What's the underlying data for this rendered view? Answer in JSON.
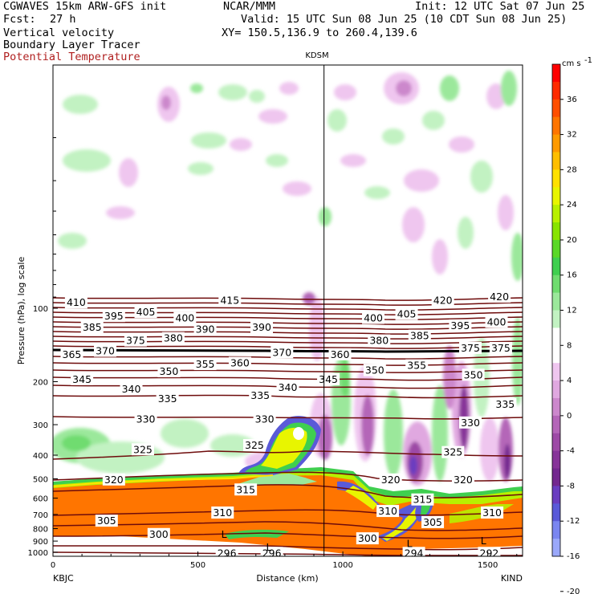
{
  "header": {
    "model": "CGWAVES 15km ARW-GFS init",
    "org": "NCAR/MMM",
    "init": "Init: 12 UTC Sat 07 Jun 25",
    "fcst_label": "Fcst:",
    "fcst_value": "27 h",
    "valid": "Valid: 15 UTC Sun 08 Jun 25 (10 CDT Sun 08 Jun 25)",
    "line3": "Vertical velocity",
    "xy": "XY= 150.5,136.9 to 260.4,139.6",
    "line4": "Boundary Layer Tracer",
    "line5": "Potential Temperature",
    "theta_color": "#b02020"
  },
  "plot": {
    "station_mid": "KDSM",
    "station_left": "KBJC",
    "station_right": "KIND",
    "xlabel": "Distance (km)",
    "ylabel": "Pressure (hPa), log scale"
  },
  "chart_data": {
    "type": "heatmap",
    "title": "",
    "xlabel": "Distance (km)",
    "ylabel": "Pressure (hPa), log scale",
    "x_ticks": [
      "0",
      "500",
      "1000",
      "1500"
    ],
    "x_tick_values": [
      0,
      500,
      1000,
      1500
    ],
    "xlim": [
      0,
      1620
    ],
    "y_scale": "log",
    "y_ticks": [
      "100",
      "200",
      "300",
      "400",
      "500",
      "600",
      "700",
      "800",
      "900",
      "1000"
    ],
    "y_tick_values": [
      100,
      200,
      300,
      400,
      500,
      600,
      700,
      800,
      900,
      1000
    ],
    "ylim": [
      1050,
      10
    ],
    "kdsm_distance_km": 935,
    "colorbar": {
      "units": "cm s",
      "units_exp": "-1",
      "tick_labels": [
        "36",
        "32",
        "28",
        "24",
        "20",
        "16",
        "12",
        "8",
        "4",
        "0",
        "-4",
        "-8",
        "-12",
        "-16",
        "-20"
      ],
      "colors": [
        "#ff0000",
        "#ff2a00",
        "#ff4f00",
        "#ff7500",
        "#ff9a00",
        "#ffbe00",
        "#ffe100",
        "#e8f500",
        "#b8f000",
        "#88e400",
        "#5ad828",
        "#3fcf4f",
        "#6fdc6f",
        "#9be89b",
        "#c2f2c2",
        "#ffffff",
        "#ffffff",
        "#efc6ef",
        "#e0a8e0",
        "#cc88cc",
        "#b466b8",
        "#9d4aa6",
        "#873499",
        "#73288f",
        "#6a3ec0",
        "#5a5ad8",
        "#7a86f0",
        "#9aa8fa"
      ]
    },
    "theta_contours": [
      {
        "label": "410",
        "x": 80,
        "p": 95
      },
      {
        "label": "415",
        "x": 610,
        "p": 93
      },
      {
        "label": "420",
        "x": 1345,
        "p": 93
      },
      {
        "label": "420",
        "x": 1540,
        "p": 90
      },
      {
        "label": "395",
        "x": 210,
        "p": 108
      },
      {
        "label": "405",
        "x": 320,
        "p": 104
      },
      {
        "label": "400",
        "x": 455,
        "p": 110
      },
      {
        "label": "400",
        "x": 1105,
        "p": 110
      },
      {
        "label": "405",
        "x": 1220,
        "p": 106
      },
      {
        "label": "395",
        "x": 1405,
        "p": 118
      },
      {
        "label": "400",
        "x": 1530,
        "p": 114
      },
      {
        "label": "385",
        "x": 135,
        "p": 120
      },
      {
        "label": "390",
        "x": 525,
        "p": 122
      },
      {
        "label": "390",
        "x": 720,
        "p": 120
      },
      {
        "label": "385",
        "x": 1265,
        "p": 130
      },
      {
        "label": "375",
        "x": 285,
        "p": 136
      },
      {
        "label": "380",
        "x": 415,
        "p": 133
      },
      {
        "label": "380",
        "x": 1125,
        "p": 136
      },
      {
        "label": "375",
        "x": 1440,
        "p": 146
      },
      {
        "label": "375",
        "x": 1545,
        "p": 146
      },
      {
        "label": "365",
        "x": 65,
        "p": 155
      },
      {
        "label": "370",
        "x": 180,
        "p": 150
      },
      {
        "label": "370",
        "x": 790,
        "p": 152
      },
      {
        "label": "360",
        "x": 990,
        "p": 155
      },
      {
        "label": "355",
        "x": 525,
        "p": 170
      },
      {
        "label": "360",
        "x": 645,
        "p": 168
      },
      {
        "label": "350",
        "x": 400,
        "p": 182
      },
      {
        "label": "350",
        "x": 1110,
        "p": 180
      },
      {
        "label": "355",
        "x": 1255,
        "p": 172
      },
      {
        "label": "350",
        "x": 1450,
        "p": 188
      },
      {
        "label": "345",
        "x": 100,
        "p": 196
      },
      {
        "label": "345",
        "x": 950,
        "p": 196
      },
      {
        "label": "340",
        "x": 270,
        "p": 215
      },
      {
        "label": "340",
        "x": 810,
        "p": 212
      },
      {
        "label": "335",
        "x": 395,
        "p": 235
      },
      {
        "label": "335",
        "x": 715,
        "p": 228
      },
      {
        "label": "335",
        "x": 1560,
        "p": 248
      },
      {
        "label": "330",
        "x": 320,
        "p": 285
      },
      {
        "label": "330",
        "x": 730,
        "p": 285
      },
      {
        "label": "330",
        "x": 1440,
        "p": 295
      },
      {
        "label": "325",
        "x": 310,
        "p": 380
      },
      {
        "label": "325",
        "x": 695,
        "p": 365
      },
      {
        "label": "325",
        "x": 1380,
        "p": 390
      },
      {
        "label": "320",
        "x": 210,
        "p": 505
      },
      {
        "label": "320",
        "x": 1165,
        "p": 505
      },
      {
        "label": "320",
        "x": 1415,
        "p": 505
      },
      {
        "label": "315",
        "x": 665,
        "p": 555
      },
      {
        "label": "315",
        "x": 1275,
        "p": 610
      },
      {
        "label": "310",
        "x": 585,
        "p": 690
      },
      {
        "label": "310",
        "x": 1155,
        "p": 680
      },
      {
        "label": "310",
        "x": 1515,
        "p": 690
      },
      {
        "label": "305",
        "x": 185,
        "p": 745
      },
      {
        "label": "305",
        "x": 1310,
        "p": 755
      },
      {
        "label": "300",
        "x": 365,
        "p": 845
      },
      {
        "label": "300",
        "x": 1085,
        "p": 880
      },
      {
        "label": "296",
        "x": 600,
        "p": 1010
      },
      {
        "label": "296",
        "x": 755,
        "p": 1010
      },
      {
        "label": "294",
        "x": 1245,
        "p": 1010
      },
      {
        "label": "292",
        "x": 1505,
        "p": 1010
      }
    ],
    "pressure_minima_label": "L",
    "pressure_minima": [
      {
        "x": 590,
        "p": 845
      },
      {
        "x": 745,
        "p": 955
      },
      {
        "x": 1230,
        "p": 925
      },
      {
        "x": 1485,
        "p": 900
      }
    ]
  }
}
